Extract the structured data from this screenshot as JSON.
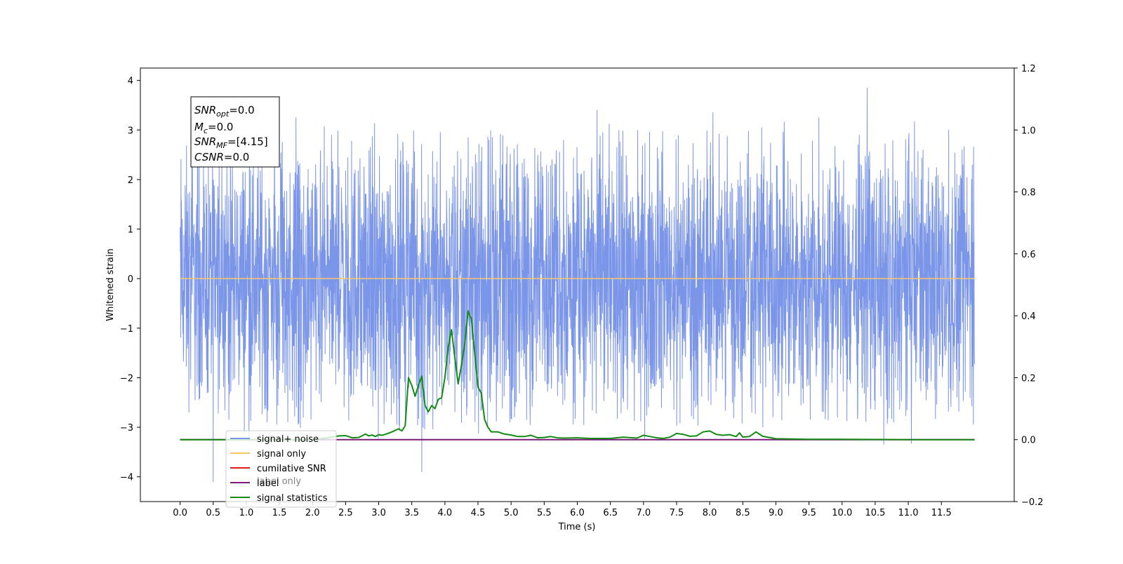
{
  "chart_data": {
    "type": "line",
    "xlabel": "Time (s)",
    "ylabel": "Whitened strain",
    "xlim": [
      -0.6,
      12.6
    ],
    "ylim": [
      -4.5,
      4.25
    ],
    "y2lim": [
      -0.2,
      1.2
    ],
    "x_ticks": [
      "0.0",
      "0.5",
      "1.0",
      "1.5",
      "2.0",
      "2.5",
      "3.0",
      "3.5",
      "4.0",
      "4.5",
      "5.0",
      "5.5",
      "6.0",
      "6.5",
      "7.0",
      "7.5",
      "8.0",
      "8.5",
      "9.0",
      "9.5",
      "10.0",
      "10.5",
      "11.0",
      "11.5"
    ],
    "y_ticks": [
      "4",
      "3",
      "2",
      "1",
      "0",
      "−1",
      "−2",
      "−3",
      "−4"
    ],
    "y2_ticks": [
      "1.2",
      "1.0",
      "0.8",
      "0.6",
      "0.4",
      "0.2",
      "0.0",
      "−0.2"
    ],
    "legend_position": "lower-left",
    "colors": {
      "signal_noise": "#7b96e8",
      "signal_only": "#f5c56a",
      "cumulative_snr": "#e31a1c",
      "label": "#7a1a7a",
      "signal_statistics": "#138a13"
    },
    "series": [
      {
        "name": "signal+ noise",
        "axis": "left",
        "x_range": [
          0.0,
          12.0
        ],
        "typical_envelope": [
          -1.8,
          2.0
        ],
        "extremes": [
          {
            "x": 0.5,
            "y": -4.1
          },
          {
            "x": 3.65,
            "y": -3.9
          },
          {
            "x": 10.38,
            "y": 3.85
          },
          {
            "x": 10.63,
            "y": -3.35
          },
          {
            "x": 8.05,
            "y": 3.35
          },
          {
            "x": 1.75,
            "y": 3.25
          },
          {
            "x": 9.65,
            "y": 3.25
          }
        ]
      },
      {
        "name": "signal only",
        "axis": "left",
        "x": [
          0.0,
          12.0
        ],
        "y": [
          0.0,
          0.0
        ]
      },
      {
        "name": "cumilative SNR",
        "axis": "right",
        "x": [
          0.0,
          12.0
        ],
        "y": [
          0.0,
          0.0
        ]
      },
      {
        "name": "label",
        "axis": "right",
        "x": [
          0.0,
          12.0
        ],
        "y": [
          0.0,
          0.0
        ]
      },
      {
        "name": "signal statistics",
        "axis": "right",
        "x": [
          0.0,
          1.0,
          2.0,
          2.2,
          2.4,
          2.5,
          2.6,
          2.7,
          2.8,
          2.85,
          2.9,
          2.95,
          3.0,
          3.05,
          3.1,
          3.2,
          3.3,
          3.35,
          3.4,
          3.45,
          3.5,
          3.55,
          3.6,
          3.65,
          3.7,
          3.75,
          3.8,
          3.85,
          3.9,
          3.95,
          4.0,
          4.05,
          4.1,
          4.15,
          4.2,
          4.25,
          4.3,
          4.35,
          4.4,
          4.45,
          4.5,
          4.55,
          4.6,
          4.65,
          4.7,
          4.8,
          4.9,
          5.0,
          5.1,
          5.2,
          5.3,
          5.4,
          5.5,
          5.6,
          5.7,
          5.8,
          6.0,
          6.2,
          6.5,
          6.7,
          6.9,
          7.0,
          7.1,
          7.2,
          7.3,
          7.4,
          7.5,
          7.6,
          7.7,
          7.8,
          7.9,
          8.0,
          8.1,
          8.2,
          8.3,
          8.4,
          8.45,
          8.5,
          8.6,
          8.7,
          8.8,
          9.0,
          9.5,
          10.0,
          11.0,
          12.0
        ],
        "y": [
          0.0,
          0.0,
          0.0,
          0.005,
          0.012,
          0.013,
          0.006,
          0.007,
          0.018,
          0.012,
          0.015,
          0.01,
          0.016,
          0.014,
          0.017,
          0.025,
          0.035,
          0.028,
          0.045,
          0.2,
          0.175,
          0.14,
          0.175,
          0.205,
          0.11,
          0.09,
          0.11,
          0.1,
          0.13,
          0.135,
          0.2,
          0.3,
          0.355,
          0.265,
          0.18,
          0.24,
          0.31,
          0.415,
          0.39,
          0.28,
          0.17,
          0.15,
          0.065,
          0.04,
          0.025,
          0.025,
          0.018,
          0.015,
          0.01,
          0.01,
          0.014,
          0.006,
          0.007,
          0.01,
          0.006,
          0.005,
          0.006,
          0.004,
          0.004,
          0.008,
          0.005,
          0.014,
          0.01,
          0.006,
          0.004,
          0.008,
          0.02,
          0.017,
          0.011,
          0.012,
          0.025,
          0.028,
          0.017,
          0.014,
          0.016,
          0.01,
          0.022,
          0.008,
          0.01,
          0.025,
          0.011,
          0.003,
          0.001,
          0.001,
          0.0,
          0.0
        ]
      }
    ]
  },
  "info_box": {
    "snr_opt": {
      "main": "SNR",
      "sub": "opt",
      "value": "=0.0"
    },
    "mc": {
      "main": "M",
      "sub": "c",
      "value": "=0.0"
    },
    "snr_mf": {
      "main": "SNR",
      "sub": "MF",
      "value": "=[4.15]"
    },
    "csnr": {
      "main": "CSNR",
      "value": "=0.0"
    }
  },
  "legend": [
    {
      "label": "signal+ noise",
      "color": "#7b96e8"
    },
    {
      "label": "signal only",
      "color": "#f5c56a"
    },
    {
      "label": "cumilative SNR",
      "color": "#e31a1c"
    },
    {
      "label": "label",
      "color": "#7a1a7a"
    },
    {
      "label": "signal statistics",
      "color": "#138a13"
    }
  ],
  "ghost_legend": [
    {
      "label": "label only"
    },
    {
      "label": "cumilative SNR"
    }
  ]
}
